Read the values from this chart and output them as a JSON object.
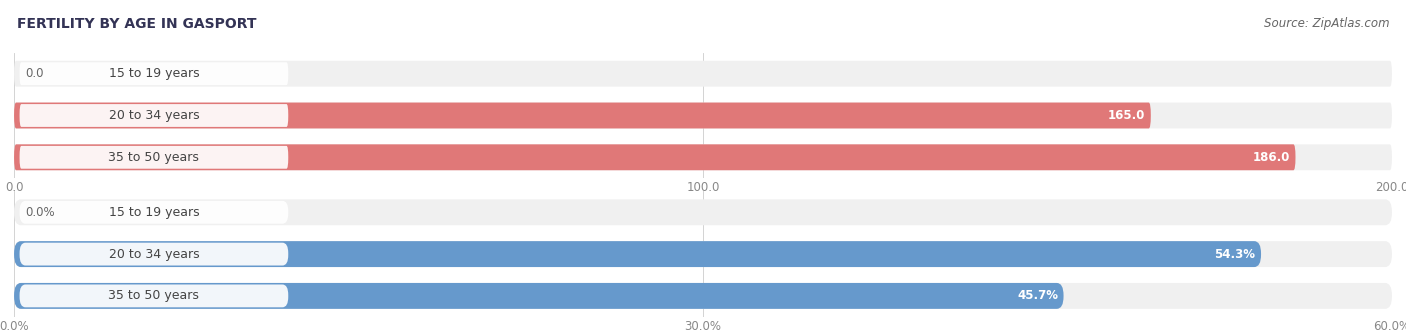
{
  "title": "FERTILITY BY AGE IN GASPORT",
  "source": "Source: ZipAtlas.com",
  "top_chart": {
    "categories": [
      "15 to 19 years",
      "20 to 34 years",
      "35 to 50 years"
    ],
    "values": [
      0.0,
      165.0,
      186.0
    ],
    "xlim": [
      0,
      200
    ],
    "xticks": [
      0.0,
      100.0,
      200.0
    ],
    "xtick_labels": [
      "0.0",
      "100.0",
      "200.0"
    ],
    "bar_color": "#E07878",
    "bar_bg_color": "#F0F0F0",
    "label_color_inside": "#FFFFFF",
    "label_color_outside": "#666666",
    "bar_height": 0.62
  },
  "bottom_chart": {
    "categories": [
      "15 to 19 years",
      "20 to 34 years",
      "35 to 50 years"
    ],
    "values": [
      0.0,
      54.3,
      45.7
    ],
    "xlim": [
      0,
      60
    ],
    "xticks": [
      0.0,
      30.0,
      60.0
    ],
    "xtick_labels": [
      "0.0%",
      "30.0%",
      "60.0%"
    ],
    "bar_color": "#6699CC",
    "bar_bg_color": "#F0F0F0",
    "label_color_inside": "#FFFFFF",
    "label_color_outside": "#666666",
    "bar_height": 0.62
  },
  "title_fontsize": 10,
  "source_fontsize": 8.5,
  "label_fontsize": 8.5,
  "category_fontsize": 9,
  "tick_fontsize": 8.5,
  "title_color": "#333355",
  "source_color": "#666666",
  "tick_color": "#888888",
  "category_color": "#444444",
  "bg_color": "#FFFFFF",
  "pill_color": "#FFFFFF",
  "pill_alpha": 0.92
}
